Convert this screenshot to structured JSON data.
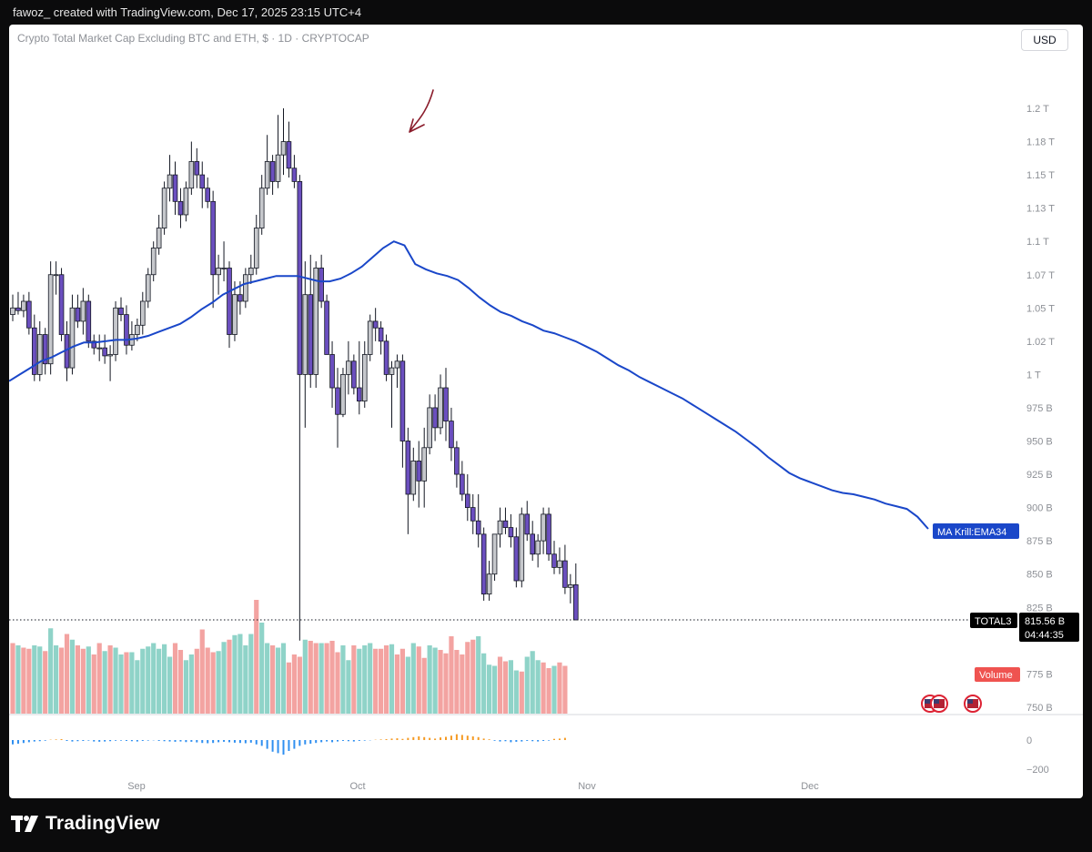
{
  "header": {
    "attribution": "fawoz_ created with TradingView.com, Dec 17, 2025 23:15 UTC+4"
  },
  "chart_title": "Crypto Total Market Cap Excluding BTC and ETH, $ · 1D · CRYPTOCAP",
  "currency_button": "USD",
  "footer": {
    "brand": "TradingView"
  },
  "colors": {
    "up_candle": "#c6c8cc",
    "down_candle": "#6b4fbf",
    "wick": "#131722",
    "ema_line": "#1a47c9",
    "volume_up": "#8fd3c8",
    "volume_down": "#f3a3a1",
    "osc_up": "#f59a23",
    "osc_down": "#2f8ff0",
    "price_tag_bg": "#000000",
    "ema_tag_bg": "#1a47c9",
    "volume_tag_bg": "#ef5350",
    "annotation": "#8b1d2c"
  },
  "chart_data": {
    "type": "candlestick",
    "symbol": "TOTAL3",
    "interval": "1D",
    "y_unit": "USD",
    "price_axis": {
      "labels": [
        "1.2 T",
        "1.18 T",
        "1.15 T",
        "1.13 T",
        "1.1 T",
        "1.07 T",
        "1.05 T",
        "1.02 T",
        "1 T",
        "975 B",
        "950 B",
        "925 B",
        "900 B",
        "875 B",
        "850 B",
        "825 B",
        "775 B",
        "750 B"
      ],
      "values": [
        1200,
        1175,
        1150,
        1125,
        1100,
        1075,
        1050,
        1025,
        1000,
        975,
        950,
        925,
        900,
        875,
        850,
        825,
        775,
        750
      ]
    },
    "x_axis_labels": [
      "Sep",
      "Oct",
      "Nov",
      "Dec"
    ],
    "last_price": {
      "symbol_label": "TOTAL3",
      "value_label": "815.56 B",
      "countdown": "04:44:35",
      "value": 815.56
    },
    "ema": {
      "label": "MA Krill:EMA34",
      "values": [
        995,
        1000,
        1005,
        1010,
        1013,
        1017,
        1021,
        1024,
        1024,
        1025,
        1026,
        1026,
        1027,
        1029,
        1032,
        1035,
        1038,
        1043,
        1049,
        1054,
        1060,
        1064,
        1068,
        1070,
        1072,
        1074,
        1074,
        1074,
        1072,
        1070,
        1070,
        1072,
        1076,
        1081,
        1088,
        1095,
        1100,
        1097,
        1083,
        1079,
        1076,
        1074,
        1071,
        1065,
        1058,
        1052,
        1047,
        1044,
        1040,
        1037,
        1033,
        1031,
        1028,
        1025,
        1021,
        1017,
        1012,
        1007,
        1003,
        998,
        994,
        990,
        986,
        982,
        977,
        972,
        967,
        962,
        957,
        951,
        945,
        938,
        932,
        926,
        922,
        919,
        916,
        913,
        911,
        910,
        908,
        906,
        903,
        901,
        899,
        893,
        884
      ]
    },
    "candles_ohlc_B": [
      [
        1045,
        1060,
        1040,
        1050
      ],
      [
        1050,
        1062,
        1045,
        1048
      ],
      [
        1048,
        1060,
        1043,
        1055
      ],
      [
        1055,
        1062,
        1030,
        1035
      ],
      [
        1035,
        1045,
        995,
        1000
      ],
      [
        1000,
        1040,
        995,
        1030
      ],
      [
        1030,
        1035,
        1000,
        1008
      ],
      [
        1008,
        1085,
        1000,
        1075
      ],
      [
        1075,
        1085,
        1060,
        1075
      ],
      [
        1075,
        1080,
        1025,
        1030
      ],
      [
        1030,
        1040,
        995,
        1005
      ],
      [
        1005,
        1060,
        1000,
        1050
      ],
      [
        1050,
        1060,
        1035,
        1040
      ],
      [
        1040,
        1065,
        1030,
        1055
      ],
      [
        1055,
        1060,
        1020,
        1025
      ],
      [
        1025,
        1030,
        1015,
        1020
      ],
      [
        1020,
        1030,
        1010,
        1020
      ],
      [
        1020,
        1030,
        1008,
        1014
      ],
      [
        1014,
        1022,
        995,
        1015
      ],
      [
        1015,
        1055,
        1010,
        1050
      ],
      [
        1050,
        1058,
        1040,
        1045
      ],
      [
        1045,
        1052,
        1015,
        1022
      ],
      [
        1022,
        1040,
        1018,
        1030
      ],
      [
        1030,
        1042,
        1025,
        1037
      ],
      [
        1037,
        1062,
        1030,
        1055
      ],
      [
        1055,
        1080,
        1050,
        1075
      ],
      [
        1075,
        1100,
        1070,
        1095
      ],
      [
        1095,
        1120,
        1090,
        1110
      ],
      [
        1110,
        1145,
        1105,
        1140
      ],
      [
        1140,
        1165,
        1130,
        1150
      ],
      [
        1150,
        1160,
        1120,
        1130
      ],
      [
        1130,
        1140,
        1110,
        1120
      ],
      [
        1120,
        1145,
        1115,
        1140
      ],
      [
        1140,
        1175,
        1135,
        1160
      ],
      [
        1160,
        1170,
        1140,
        1150
      ],
      [
        1150,
        1160,
        1125,
        1140
      ],
      [
        1140,
        1148,
        1125,
        1130
      ],
      [
        1130,
        1138,
        1050,
        1075
      ],
      [
        1075,
        1090,
        1060,
        1080
      ],
      [
        1080,
        1100,
        1070,
        1080
      ],
      [
        1080,
        1085,
        1020,
        1030
      ],
      [
        1030,
        1070,
        1025,
        1060
      ],
      [
        1060,
        1070,
        1045,
        1055
      ],
      [
        1055,
        1080,
        1050,
        1075
      ],
      [
        1075,
        1090,
        1068,
        1080
      ],
      [
        1080,
        1120,
        1075,
        1110
      ],
      [
        1110,
        1150,
        1105,
        1140
      ],
      [
        1140,
        1180,
        1135,
        1160
      ],
      [
        1160,
        1165,
        1135,
        1145
      ],
      [
        1145,
        1195,
        1140,
        1165
      ],
      [
        1165,
        1200,
        1150,
        1175
      ],
      [
        1175,
        1190,
        1148,
        1155
      ],
      [
        1155,
        1165,
        1140,
        1145
      ],
      [
        1145,
        1150,
        800,
        1000
      ],
      [
        1000,
        1085,
        960,
        1060
      ],
      [
        1060,
        1090,
        990,
        1000
      ],
      [
        1000,
        1085,
        990,
        1080
      ],
      [
        1080,
        1090,
        1050,
        1055
      ],
      [
        1055,
        1060,
        1020,
        1015
      ],
      [
        1015,
        1025,
        975,
        990
      ],
      [
        990,
        1005,
        945,
        970
      ],
      [
        970,
        1005,
        968,
        1000
      ],
      [
        1000,
        1025,
        985,
        1010
      ],
      [
        1010,
        1015,
        985,
        990
      ],
      [
        990,
        1025,
        970,
        980
      ],
      [
        980,
        1025,
        975,
        1015
      ],
      [
        1015,
        1045,
        1010,
        1040
      ],
      [
        1040,
        1050,
        1025,
        1035
      ],
      [
        1035,
        1040,
        1015,
        1025
      ],
      [
        1025,
        1030,
        995,
        1000
      ],
      [
        1000,
        1010,
        960,
        1005
      ],
      [
        1005,
        1015,
        990,
        1010
      ],
      [
        1010,
        1015,
        930,
        950
      ],
      [
        950,
        960,
        880,
        910
      ],
      [
        910,
        945,
        905,
        935
      ],
      [
        935,
        950,
        900,
        920
      ],
      [
        920,
        960,
        900,
        945
      ],
      [
        945,
        985,
        940,
        975
      ],
      [
        975,
        985,
        950,
        960
      ],
      [
        960,
        1000,
        955,
        990
      ],
      [
        990,
        1005,
        950,
        965
      ],
      [
        965,
        975,
        935,
        945
      ],
      [
        945,
        950,
        915,
        925
      ],
      [
        925,
        935,
        905,
        910
      ],
      [
        910,
        925,
        890,
        900
      ],
      [
        900,
        910,
        880,
        890
      ],
      [
        890,
        910,
        870,
        880
      ],
      [
        880,
        885,
        830,
        835
      ],
      [
        835,
        860,
        830,
        850
      ],
      [
        850,
        880,
        845,
        880
      ],
      [
        880,
        900,
        870,
        890
      ],
      [
        890,
        900,
        880,
        885
      ],
      [
        885,
        895,
        870,
        878
      ],
      [
        878,
        885,
        840,
        845
      ],
      [
        845,
        900,
        840,
        895
      ],
      [
        895,
        905,
        875,
        880
      ],
      [
        880,
        890,
        860,
        865
      ],
      [
        865,
        880,
        855,
        875
      ],
      [
        875,
        900,
        865,
        895
      ],
      [
        895,
        900,
        860,
        865
      ],
      [
        865,
        875,
        850,
        855
      ],
      [
        855,
        870,
        850,
        860
      ],
      [
        860,
        872,
        835,
        840
      ],
      [
        840,
        850,
        828,
        842
      ],
      [
        842,
        858,
        838,
        815.56
      ]
    ],
    "volume": {
      "label": "Volume",
      "values": [
        62,
        60,
        58,
        57,
        60,
        59,
        55,
        75,
        60,
        58,
        70,
        65,
        60,
        57,
        59,
        52,
        62,
        55,
        60,
        58,
        52,
        54,
        54,
        47,
        57,
        59,
        62,
        57,
        61,
        50,
        62,
        56,
        47,
        52,
        57,
        74,
        58,
        54,
        55,
        63,
        65,
        69,
        70,
        60,
        70,
        100,
        80,
        62,
        60,
        58,
        62,
        45,
        52,
        50,
        65,
        64,
        62,
        62,
        62,
        64,
        54,
        60,
        47,
        60,
        57,
        60,
        62,
        57,
        57,
        60,
        61,
        52,
        57,
        50,
        62,
        59,
        49,
        60,
        58,
        56,
        53,
        68,
        56,
        52,
        63,
        65,
        68,
        53,
        43,
        42,
        50,
        46,
        47,
        38,
        37,
        50,
        55,
        47,
        45,
        40,
        42,
        45,
        42
      ],
      "directions": [
        "d",
        "u",
        "d",
        "d",
        "u",
        "u",
        "d",
        "u",
        "u",
        "d",
        "d",
        "u",
        "d",
        "d",
        "u",
        "d",
        "d",
        "u",
        "d",
        "u",
        "u",
        "d",
        "u",
        "u",
        "u",
        "u",
        "u",
        "u",
        "u",
        "u",
        "d",
        "d",
        "u",
        "u",
        "d",
        "d",
        "d",
        "d",
        "u",
        "u",
        "d",
        "u",
        "u",
        "u",
        "u",
        "d",
        "u",
        "u",
        "d",
        "u",
        "u",
        "d",
        "d",
        "d",
        "u",
        "d",
        "d",
        "u",
        "d",
        "d",
        "d",
        "u",
        "u",
        "d",
        "u",
        "u",
        "u",
        "d",
        "d",
        "d",
        "u",
        "d",
        "d",
        "u",
        "u",
        "d",
        "d",
        "u",
        "u",
        "d",
        "d",
        "d",
        "d",
        "d",
        "d",
        "d",
        "u",
        "u",
        "u",
        "u",
        "d",
        "d",
        "u",
        "u",
        "d",
        "u",
        "u",
        "u",
        "d",
        "d",
        "u",
        "d",
        "d"
      ]
    },
    "oscillator": {
      "axis_labels": [
        "0",
        "−200"
      ],
      "axis_values": [
        0,
        -200
      ],
      "values": [
        -30,
        -25,
        -20,
        -15,
        -10,
        -8,
        -5,
        2,
        4,
        6,
        -6,
        -10,
        -8,
        -6,
        -4,
        -10,
        -12,
        -10,
        -8,
        -5,
        -4,
        -6,
        -8,
        -10,
        -6,
        -4,
        -2,
        -6,
        -8,
        -10,
        -12,
        -10,
        -14,
        -12,
        -16,
        -20,
        -22,
        -20,
        -15,
        -12,
        -15,
        -18,
        -20,
        -22,
        -18,
        -30,
        -40,
        -60,
        -80,
        -90,
        -100,
        -75,
        -60,
        -40,
        -30,
        -25,
        -20,
        -15,
        -10,
        -15,
        -10,
        -6,
        -8,
        -10,
        -6,
        -4,
        -2,
        2,
        4,
        6,
        10,
        12,
        8,
        15,
        20,
        25,
        20,
        15,
        10,
        18,
        22,
        30,
        40,
        35,
        30,
        25,
        20,
        10,
        5,
        -5,
        -10,
        -8,
        -15,
        -12,
        -10,
        -6,
        -8,
        -10,
        -6,
        -4,
        8,
        10,
        15
      ]
    }
  }
}
